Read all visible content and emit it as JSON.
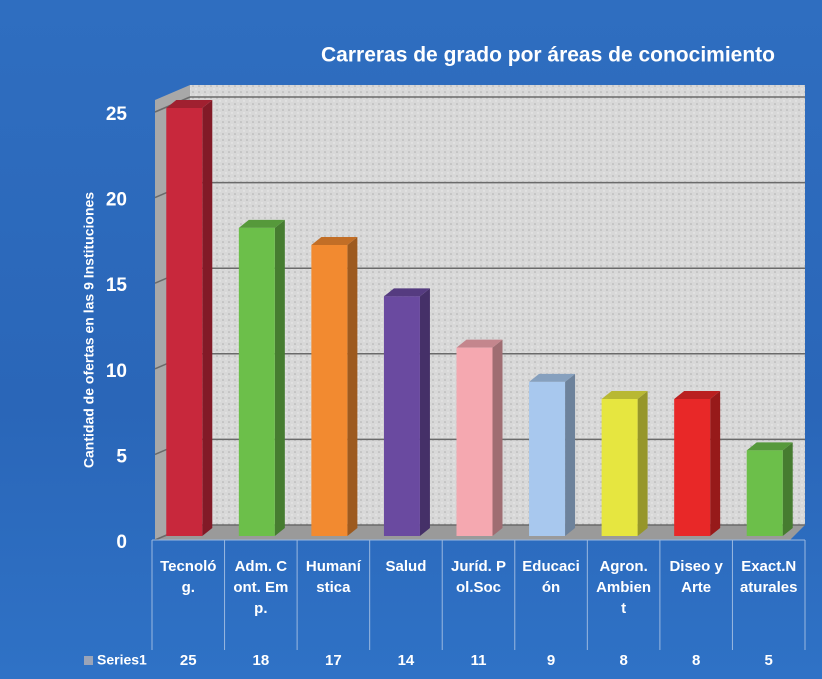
{
  "chart_data": {
    "type": "bar3d",
    "title": "Carreras de grado por áreas de conocimiento",
    "y_label": "Cantidad de ofertas en las 9 Instituciones",
    "categories": [
      "Tecnológ.",
      "Adm. Cont. Emp.",
      "Humanística",
      "Salud",
      "Juríd. Pol.Soc",
      "Educación",
      "Agron.Ambient",
      "Diseo y Arte",
      "Exact.Naturales"
    ],
    "series": [
      {
        "name": "Series1",
        "color": "#9aa4b8",
        "colors": [
          "#c8283c",
          "#6cbf4a",
          "#f28a30",
          "#6a4aa0",
          "#f5a8b0",
          "#a8c8ee",
          "#e6e640",
          "#e82828",
          "#6cbf4a"
        ],
        "values": [
          25,
          18,
          17,
          14,
          11,
          9,
          8,
          8,
          5
        ]
      }
    ],
    "ylim": [
      0,
      25
    ],
    "yticks": [
      0,
      5,
      10,
      15,
      20,
      25
    ],
    "grid": true,
    "data_table": true
  }
}
